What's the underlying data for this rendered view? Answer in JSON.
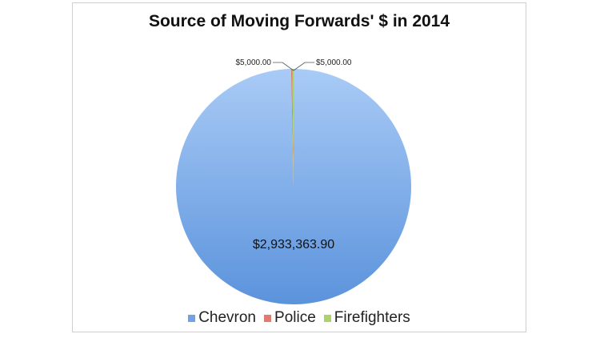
{
  "chart_data": {
    "type": "pie",
    "title": "Source of Moving Forwards' $ in 2014",
    "legend_position": "bottom",
    "slices": [
      {
        "name": "Chevron",
        "value": 2933363.9,
        "label": "$2,933,363.90",
        "color": "#6ea4e6"
      },
      {
        "name": "Police",
        "value": 5000.0,
        "label": "$5,000.00",
        "color": "#e07a72"
      },
      {
        "name": "Firefighters",
        "value": 5000.0,
        "label": "$5,000.00",
        "color": "#a9d46a"
      }
    ]
  }
}
